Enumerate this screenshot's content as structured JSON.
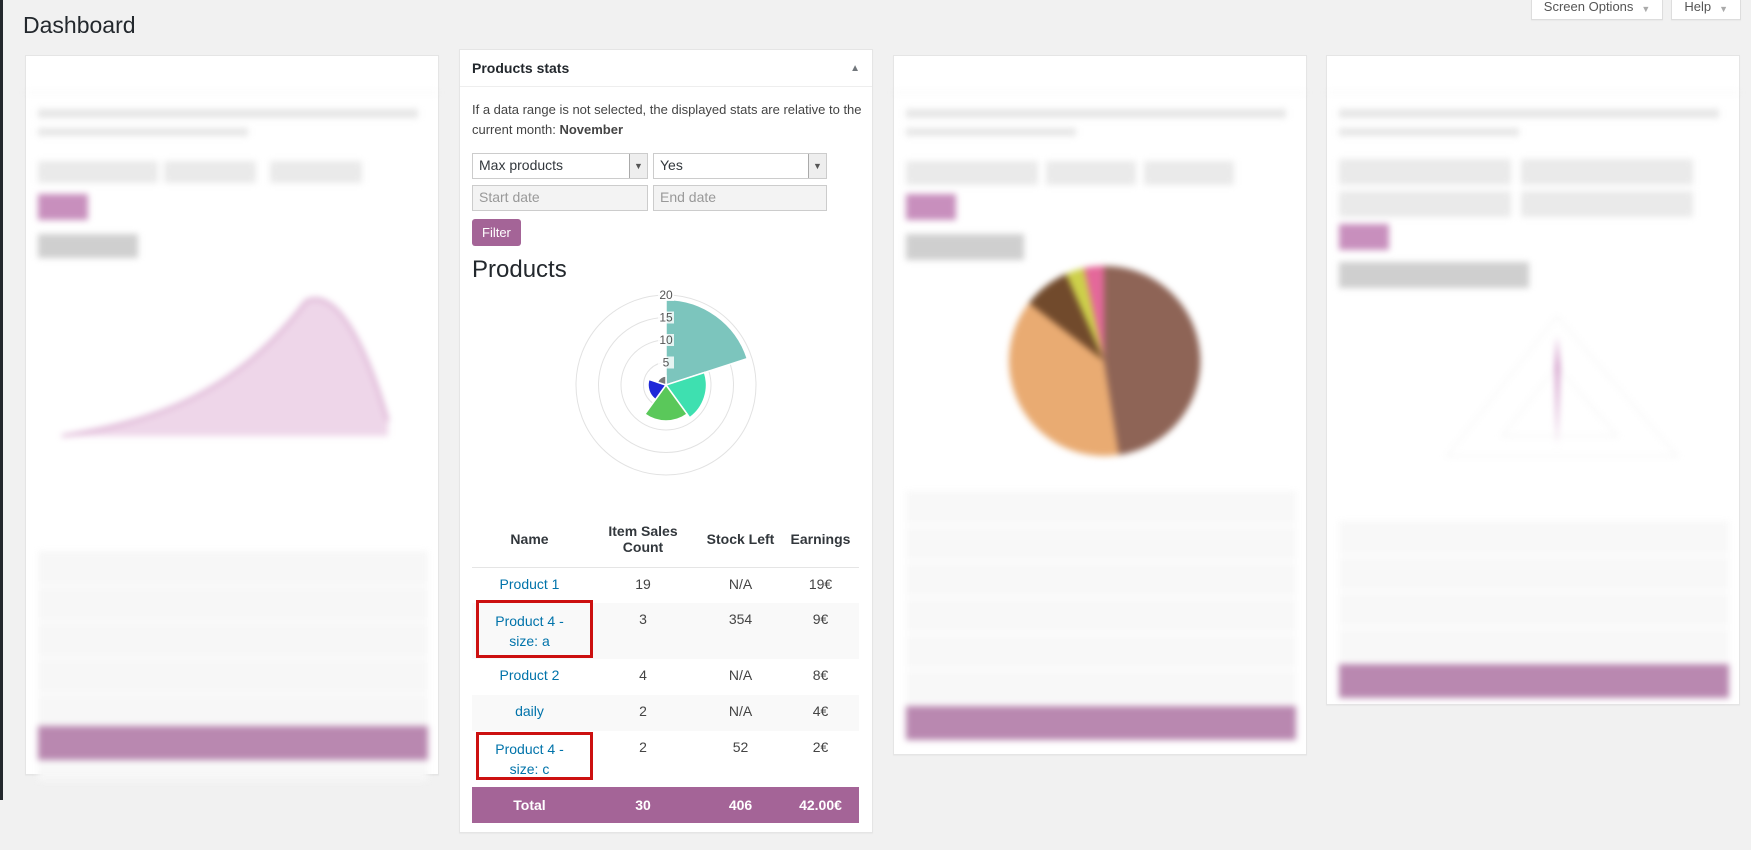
{
  "page": {
    "title": "Dashboard"
  },
  "screen_meta": {
    "screen_options": "Screen Options",
    "help": "Help"
  },
  "colors": {
    "accent": "#a46497",
    "link": "#0073aa",
    "highlight": "#cc1010"
  },
  "products_widget": {
    "title": "Products stats",
    "note_prefix": "If a data range is not selected, the displayed stats are relative to the current month:",
    "note_month": "November",
    "select_type": "Max products",
    "select_stock": "Yes",
    "start_placeholder": "Start date",
    "end_placeholder": "End date",
    "filter_label": "Filter",
    "chart_heading": "Products",
    "headers": {
      "name": "Name",
      "sales": "Item Sales Count",
      "stock": "Stock Left",
      "earnings": "Earnings"
    },
    "rows": [
      {
        "name": "Product 1",
        "sales": "19",
        "stock": "N/A",
        "earnings": "19€"
      },
      {
        "name": "Product 4 - size: a",
        "sales": "3",
        "stock": "354",
        "earnings": "9€"
      },
      {
        "name": "Product 2",
        "sales": "4",
        "stock": "N/A",
        "earnings": "8€"
      },
      {
        "name": "daily",
        "sales": "2",
        "stock": "N/A",
        "earnings": "4€"
      },
      {
        "name": "Product 4 - size: c",
        "sales": "2",
        "stock": "52",
        "earnings": "2€"
      }
    ],
    "total": {
      "label": "Total",
      "sales": "30",
      "stock": "406",
      "earnings": "42.00€"
    }
  },
  "chart_data": {
    "type": "polar-area",
    "title": "",
    "categories": [
      "Product 1",
      "Product 4 - size: a",
      "Product 2",
      "daily",
      "Product 4 - size: c"
    ],
    "values": [
      19,
      9,
      8,
      4,
      2
    ],
    "colors": [
      "#7cc5bd",
      "#3ee0b0",
      "#5ac85a",
      "#1f28d8",
      "#7a7a7a"
    ],
    "rlim": [
      0,
      20
    ],
    "ticks": [
      "5",
      "10",
      "15",
      "20"
    ]
  }
}
